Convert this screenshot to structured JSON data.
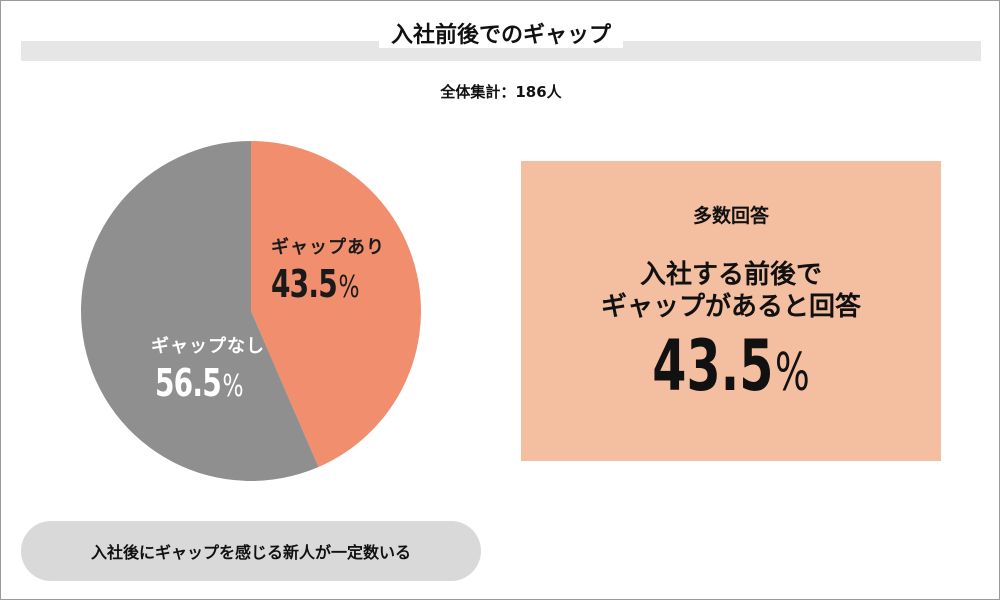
{
  "chart_data": {
    "type": "pie",
    "title": "入社前後でのギャップ",
    "subtitle": "全体集計：186人",
    "categories": [
      "ギャップあり",
      "ギャップなし"
    ],
    "values": [
      43.5,
      56.5
    ],
    "value_labels": [
      "43.5",
      "56.5"
    ],
    "unit": "%",
    "colors": [
      "#f08e6e",
      "#8f8f8f"
    ],
    "start_angle": "12 o'clock, clockwise",
    "legend": "labels inside slices"
  },
  "summary": {
    "heading": "多数回答",
    "line1": "入社する前後で",
    "line2": "ギャップがあると回答",
    "value": "43.5",
    "unit": "%",
    "background_color": "#f4bea0"
  },
  "footer": {
    "text": "入社後にギャップを感じる新人が一定数いる"
  }
}
